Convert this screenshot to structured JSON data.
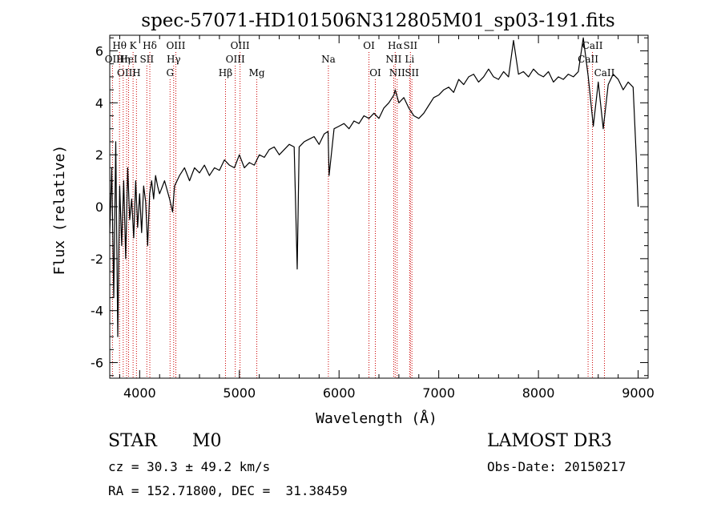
{
  "chart_data": {
    "type": "line",
    "title": "spec-57071-HD101506N312805M01_sp03-191.fits",
    "xlabel": "Wavelength (Å)",
    "ylabel": "Flux (relative)",
    "xlim": [
      3700,
      9100
    ],
    "ylim": [
      -6.6,
      6.6
    ],
    "xticks": [
      4000,
      5000,
      6000,
      7000,
      8000,
      9000
    ],
    "yticks": [
      -6,
      -4,
      -2,
      0,
      2,
      4,
      6
    ],
    "grid": false,
    "line_color": "#000000",
    "marker_color": "#cc0000",
    "series": [
      {
        "name": "flux",
        "x": [
          3700,
          3720,
          3740,
          3760,
          3780,
          3800,
          3820,
          3840,
          3860,
          3880,
          3900,
          3920,
          3940,
          3960,
          3980,
          4000,
          4020,
          4040,
          4060,
          4080,
          4100,
          4120,
          4140,
          4160,
          4180,
          4200,
          4250,
          4300,
          4330,
          4350,
          4400,
          4450,
          4500,
          4550,
          4600,
          4650,
          4700,
          4750,
          4800,
          4850,
          4900,
          4950,
          5000,
          5050,
          5100,
          5150,
          5200,
          5250,
          5300,
          5350,
          5400,
          5450,
          5500,
          5550,
          5580,
          5600,
          5650,
          5700,
          5750,
          5800,
          5850,
          5890,
          5900,
          5950,
          6000,
          6050,
          6100,
          6150,
          6200,
          6250,
          6300,
          6350,
          6400,
          6450,
          6500,
          6550,
          6563,
          6600,
          6650,
          6700,
          6750,
          6800,
          6850,
          6900,
          6950,
          7000,
          7050,
          7100,
          7150,
          7200,
          7250,
          7300,
          7350,
          7400,
          7450,
          7500,
          7550,
          7600,
          7650,
          7700,
          7750,
          7800,
          7850,
          7900,
          7950,
          8000,
          8050,
          8100,
          8150,
          8200,
          8250,
          8300,
          8350,
          8400,
          8450,
          8500,
          8550,
          8600,
          8650,
          8700,
          8750,
          8800,
          8850,
          8900,
          8950,
          8980,
          9000
        ],
        "y": [
          -1.0,
          1.5,
          -3.5,
          2.5,
          -5.0,
          0.8,
          -1.5,
          1.0,
          -2.0,
          1.5,
          -0.5,
          0.3,
          -1.2,
          1.0,
          -0.8,
          0.5,
          -1.0,
          0.8,
          0.2,
          -1.5,
          0.5,
          1.0,
          0.3,
          1.2,
          0.8,
          0.5,
          1.0,
          0.3,
          -0.2,
          0.8,
          1.2,
          1.5,
          1.0,
          1.5,
          1.3,
          1.6,
          1.2,
          1.5,
          1.4,
          1.8,
          1.6,
          1.5,
          2.0,
          1.5,
          1.7,
          1.6,
          2.0,
          1.9,
          2.2,
          2.3,
          2.0,
          2.2,
          2.4,
          2.3,
          -2.4,
          2.3,
          2.5,
          2.6,
          2.7,
          2.4,
          2.8,
          2.9,
          1.2,
          3.0,
          3.1,
          3.2,
          3.0,
          3.3,
          3.2,
          3.5,
          3.4,
          3.6,
          3.4,
          3.8,
          4.0,
          4.3,
          4.5,
          4.0,
          4.2,
          3.8,
          3.5,
          3.4,
          3.6,
          3.9,
          4.2,
          4.3,
          4.5,
          4.6,
          4.4,
          4.9,
          4.7,
          5.0,
          5.1,
          4.8,
          5.0,
          5.3,
          5.0,
          4.9,
          5.2,
          5.0,
          6.4,
          5.1,
          5.2,
          5.0,
          5.3,
          5.1,
          5.0,
          5.2,
          4.8,
          5.0,
          4.9,
          5.1,
          5.0,
          5.2,
          6.5,
          5.0,
          3.1,
          4.8,
          3.0,
          4.7,
          5.1,
          4.9,
          4.5,
          4.8,
          4.6,
          2.0,
          0.0
        ]
      }
    ],
    "line_markers": [
      {
        "label": "Hθ",
        "x": 3798,
        "row": 0
      },
      {
        "label": "OII",
        "x": 3727,
        "row": 1
      },
      {
        "label": "OIII",
        "x": 3869,
        "row": 2
      },
      {
        "label": "Hη",
        "x": 3835,
        "row": 1
      },
      {
        "label": "HeI",
        "x": 3889,
        "row": 1
      },
      {
        "label": "K",
        "x": 3934,
        "row": 0
      },
      {
        "label": "H",
        "x": 3968,
        "row": 2
      },
      {
        "label": "SII",
        "x": 4072,
        "row": 1
      },
      {
        "label": "Hδ",
        "x": 4102,
        "row": 0
      },
      {
        "label": "OIII",
        "x": 4363,
        "row": 0
      },
      {
        "label": "Hγ",
        "x": 4341,
        "row": 1
      },
      {
        "label": "G",
        "x": 4305,
        "row": 2
      },
      {
        "label": "Hβ",
        "x": 4861,
        "row": 2
      },
      {
        "label": "OIII",
        "x": 5007,
        "row": 0
      },
      {
        "label": "OIII",
        "x": 4959,
        "row": 1
      },
      {
        "label": "Mg",
        "x": 5175,
        "row": 2
      },
      {
        "label": "Na",
        "x": 5893,
        "row": 1
      },
      {
        "label": "OI",
        "x": 6300,
        "row": 0
      },
      {
        "label": "OI",
        "x": 6364,
        "row": 2
      },
      {
        "label": "Hα",
        "x": 6563,
        "row": 0
      },
      {
        "label": "SII",
        "x": 6716,
        "row": 0
      },
      {
        "label": "NII",
        "x": 6548,
        "row": 1
      },
      {
        "label": "Li",
        "x": 6708,
        "row": 1
      },
      {
        "label": "NII",
        "x": 6583,
        "row": 2
      },
      {
        "label": "SII",
        "x": 6731,
        "row": 2
      },
      {
        "label": "CaII",
        "x": 8542,
        "row": 0
      },
      {
        "label": "CaII",
        "x": 8498,
        "row": 1
      },
      {
        "label": "CaII",
        "x": 8662,
        "row": 2
      }
    ]
  },
  "info": {
    "object_type": "STAR",
    "subclass": "M0",
    "survey": "LAMOST DR3",
    "cz": "cz = 30.3 ± 49.2 km/s",
    "obs_date": "Obs-Date: 20150217",
    "coords": "RA = 152.71800, DEC =  31.38459"
  }
}
